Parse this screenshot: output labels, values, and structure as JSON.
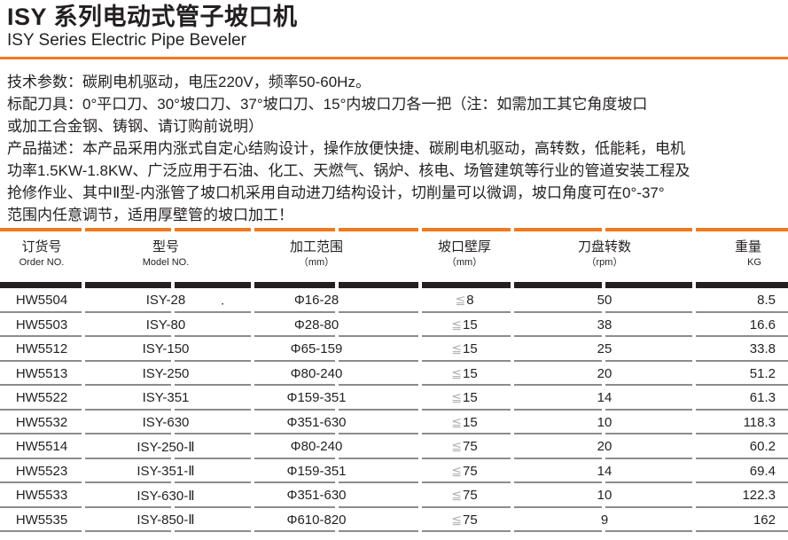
{
  "header": {
    "title_zh": "ISY 系列电动式管子坡口机",
    "title_en": "ISY Series Electric Pipe Beveler"
  },
  "description": {
    "lines": [
      "技术参数：碳刷电机驱动，电压220V，频率50-60Hz。",
      "标配刀具：0°平口刀、30°坡口刀、37°坡口刀、15°内坡口刀各一把（注：如需加工其它角度坡口",
      "或加工合金钢、铸钢、请订购前说明）",
      "产品描述：本产品采用内涨式自定心结购设计，操作放便快捷、碳刷电机驱动，高转数，低能耗，电机",
      "功率1.5KW-1.8KW、广泛应用于石油、化工、天燃气、锅炉、核电、场管建筑等行业的管道安装工程及",
      "抢修作业、其中Ⅱ型-内涨管了坡口机采用自动进刀结构设计，切削量可以微调，坡口角度可在0°-37°",
      "范围内任意调节，适用厚壁管的坡口加工！"
    ]
  },
  "colors": {
    "accent_orange": "#f2791d",
    "text_ink": "#231f20",
    "divider_grey": "#8c8c8c",
    "header_bar_dark": "#242021",
    "symbol_grey": "#b3b3b3"
  },
  "table": {
    "wall_prefix": "≦",
    "columns": [
      {
        "zh": "订货号",
        "en": "Order NO."
      },
      {
        "zh": "型号",
        "en": "Model NO."
      },
      {
        "zh": "加工范围",
        "en": "（mm）"
      },
      {
        "zh": "坡口壁厚",
        "en": "（mm）"
      },
      {
        "zh": "刀盘转数",
        "en": "（rpm）"
      },
      {
        "zh": "重量",
        "en": "KG"
      }
    ],
    "rows": [
      {
        "order": "HW5504",
        "model": "ISY-28",
        "model_note": ".",
        "range": "Φ16-28",
        "wall": "8",
        "rpm": "50",
        "weight": "8.5"
      },
      {
        "order": "HW5503",
        "model": "ISY-80",
        "range": "Φ28-80",
        "wall": "15",
        "rpm": "38",
        "weight": "16.6"
      },
      {
        "order": "HW5512",
        "model": "ISY-150",
        "range": "Φ65-159",
        "wall": "15",
        "rpm": "25",
        "weight": "33.8"
      },
      {
        "order": "HW5513",
        "model": "ISY-250",
        "range": "Φ80-240",
        "wall": "15",
        "rpm": "20",
        "weight": "51.2"
      },
      {
        "order": "HW5522",
        "model": "ISY-351",
        "range": "Φ159-351",
        "wall": "15",
        "rpm": "14",
        "weight": "61.3"
      },
      {
        "order": "HW5532",
        "model": "ISY-630",
        "range": "Φ351-630",
        "wall": "15",
        "rpm": "10",
        "weight": "118.3"
      },
      {
        "order": "HW5514",
        "model": "ISY-250-Ⅱ",
        "range": "Φ80-240",
        "wall": "75",
        "rpm": "20",
        "weight": "60.2"
      },
      {
        "order": "HW5523",
        "model": "ISY-351-Ⅱ",
        "range": "Φ159-351",
        "wall": "75",
        "rpm": "14",
        "weight": "69.4"
      },
      {
        "order": "HW5533",
        "model": "ISY-630-Ⅱ",
        "range": "Φ351-630",
        "wall": "75",
        "rpm": "10",
        "weight": "122.3"
      },
      {
        "order": "HW5535",
        "model": "ISY-850-Ⅱ",
        "range": "Φ610-820",
        "wall": "75",
        "rpm": "9",
        "weight": "162"
      }
    ]
  }
}
